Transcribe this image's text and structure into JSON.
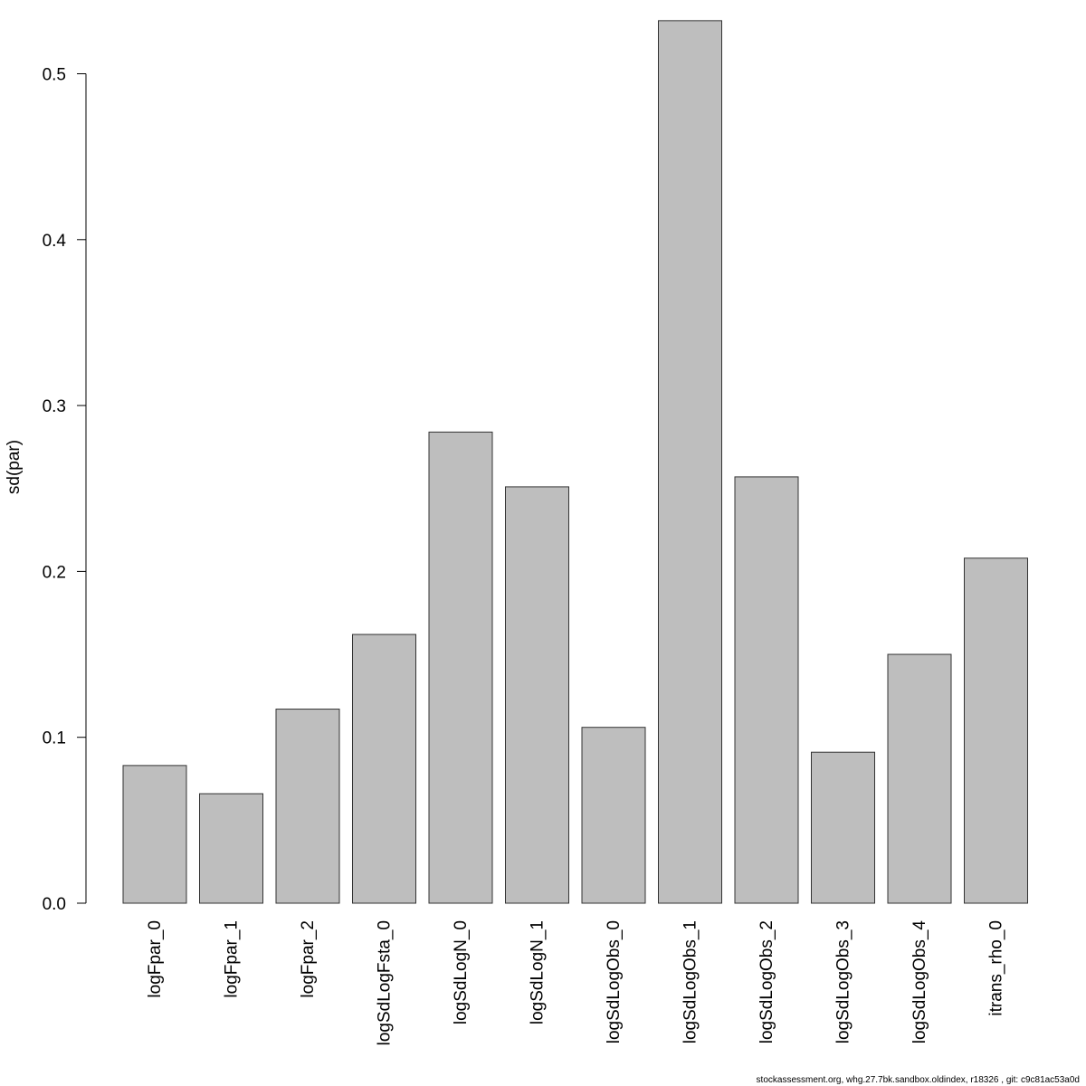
{
  "chart_data": {
    "type": "bar",
    "categories": [
      "logFpar_0",
      "logFpar_1",
      "logFpar_2",
      "logSdLogFsta_0",
      "logSdLogN_0",
      "logSdLogN_1",
      "logSdLogObs_0",
      "logSdLogObs_1",
      "logSdLogObs_2",
      "logSdLogObs_3",
      "logSdLogObs_4",
      "itrans_rho_0"
    ],
    "values": [
      0.083,
      0.066,
      0.117,
      0.162,
      0.284,
      0.251,
      0.106,
      0.532,
      0.257,
      0.091,
      0.15,
      0.208
    ],
    "ylabel": "sd(par)",
    "xlabel": "",
    "title": "",
    "ylim": [
      0,
      0.5
    ],
    "yticks": [
      "0.0",
      "0.1",
      "0.2",
      "0.3",
      "0.4",
      "0.5"
    ],
    "grid": false,
    "legend": "none",
    "bar_color": "#bebebe",
    "bar_border_color": "#333333"
  },
  "footer": {
    "text": "stockassessment.org, whg.27.7bk.sandbox.oldindex, r18326 , git: c9c81ac53a0d"
  }
}
